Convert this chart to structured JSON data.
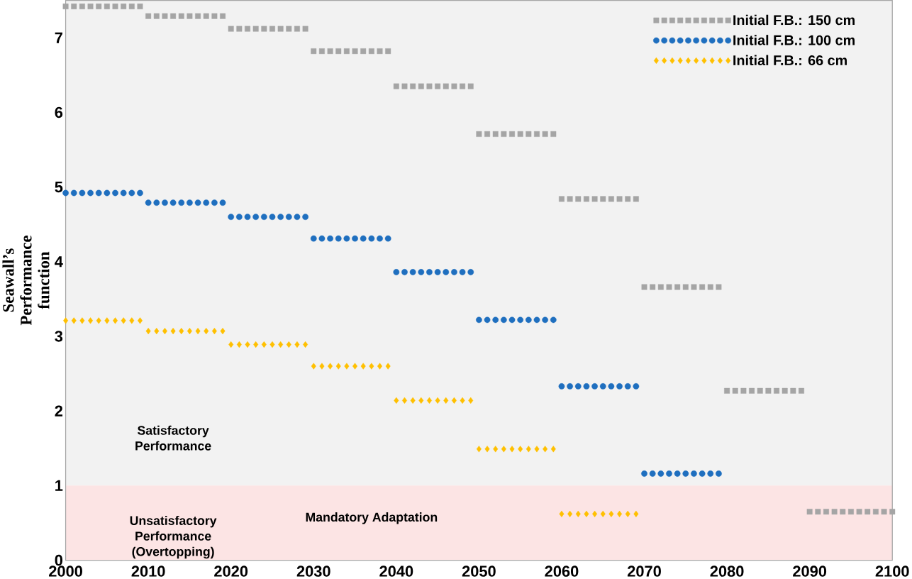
{
  "chart_data": {
    "type": "scatter",
    "ylabel": "Seawall’s Performance function",
    "x": [
      2000,
      2001,
      2002,
      2003,
      2004,
      2005,
      2006,
      2007,
      2008,
      2009,
      2010,
      2011,
      2012,
      2013,
      2014,
      2015,
      2016,
      2017,
      2018,
      2019,
      2020,
      2021,
      2022,
      2023,
      2024,
      2025,
      2026,
      2027,
      2028,
      2029,
      2030,
      2031,
      2032,
      2033,
      2034,
      2035,
      2036,
      2037,
      2038,
      2039,
      2040,
      2041,
      2042,
      2043,
      2044,
      2045,
      2046,
      2047,
      2048,
      2049,
      2050,
      2051,
      2052,
      2053,
      2054,
      2055,
      2056,
      2057,
      2058,
      2059,
      2060,
      2061,
      2062,
      2063,
      2064,
      2065,
      2066,
      2067,
      2068,
      2069,
      2070,
      2071,
      2072,
      2073,
      2074,
      2075,
      2076,
      2077,
      2078,
      2079,
      2080,
      2081,
      2082,
      2083,
      2084,
      2085,
      2086,
      2087,
      2088,
      2089,
      2090,
      2091,
      2092,
      2093,
      2094,
      2095,
      2096,
      2097,
      2098,
      2099,
      2100
    ],
    "series": [
      {
        "name": "Initial F.B.: 150 cm",
        "color": "#a5a5a5",
        "marker": "square",
        "values": [
          7.42,
          7.42,
          7.42,
          7.42,
          7.42,
          7.42,
          7.42,
          7.42,
          7.42,
          7.42,
          7.29,
          7.29,
          7.29,
          7.29,
          7.29,
          7.29,
          7.29,
          7.29,
          7.29,
          7.29,
          7.12,
          7.12,
          7.12,
          7.12,
          7.12,
          7.12,
          7.12,
          7.12,
          7.12,
          7.12,
          6.82,
          6.82,
          6.82,
          6.82,
          6.82,
          6.82,
          6.82,
          6.82,
          6.82,
          6.82,
          6.35,
          6.35,
          6.35,
          6.35,
          6.35,
          6.35,
          6.35,
          6.35,
          6.35,
          6.35,
          5.71,
          5.71,
          5.71,
          5.71,
          5.71,
          5.71,
          5.71,
          5.71,
          5.71,
          5.71,
          4.84,
          4.84,
          4.84,
          4.84,
          4.84,
          4.84,
          4.84,
          4.84,
          4.84,
          4.84,
          3.66,
          3.66,
          3.66,
          3.66,
          3.66,
          3.66,
          3.66,
          3.66,
          3.66,
          3.66,
          2.27,
          2.27,
          2.27,
          2.27,
          2.27,
          2.27,
          2.27,
          2.27,
          2.27,
          2.27,
          0.65,
          0.65,
          0.65,
          0.65,
          0.65,
          0.65,
          0.65,
          0.65,
          0.65,
          0.65,
          0.65
        ]
      },
      {
        "name": "Initial F.B.: 100 cm",
        "color": "#1f6fbf",
        "marker": "circle",
        "values": [
          4.92,
          4.92,
          4.92,
          4.92,
          4.92,
          4.92,
          4.92,
          4.92,
          4.92,
          4.92,
          4.79,
          4.79,
          4.79,
          4.79,
          4.79,
          4.79,
          4.79,
          4.79,
          4.79,
          4.79,
          4.6,
          4.6,
          4.6,
          4.6,
          4.6,
          4.6,
          4.6,
          4.6,
          4.6,
          4.6,
          4.31,
          4.31,
          4.31,
          4.31,
          4.31,
          4.31,
          4.31,
          4.31,
          4.31,
          4.31,
          3.86,
          3.86,
          3.86,
          3.86,
          3.86,
          3.86,
          3.86,
          3.86,
          3.86,
          3.86,
          3.22,
          3.22,
          3.22,
          3.22,
          3.22,
          3.22,
          3.22,
          3.22,
          3.22,
          3.22,
          2.33,
          2.33,
          2.33,
          2.33,
          2.33,
          2.33,
          2.33,
          2.33,
          2.33,
          2.33,
          1.16,
          1.16,
          1.16,
          1.16,
          1.16,
          1.16,
          1.16,
          1.16,
          1.16,
          1.16,
          null,
          null,
          null,
          null,
          null,
          null,
          null,
          null,
          null,
          null,
          null,
          null,
          null,
          null,
          null,
          null,
          null,
          null,
          null,
          null,
          null
        ]
      },
      {
        "name": "Initial F.B.: 66 cm",
        "color": "#ffc000",
        "marker": "diamond",
        "values": [
          3.21,
          3.21,
          3.21,
          3.21,
          3.21,
          3.21,
          3.21,
          3.21,
          3.21,
          3.21,
          3.07,
          3.07,
          3.07,
          3.07,
          3.07,
          3.07,
          3.07,
          3.07,
          3.07,
          3.07,
          2.89,
          2.89,
          2.89,
          2.89,
          2.89,
          2.89,
          2.89,
          2.89,
          2.89,
          2.89,
          2.6,
          2.6,
          2.6,
          2.6,
          2.6,
          2.6,
          2.6,
          2.6,
          2.6,
          2.6,
          2.14,
          2.14,
          2.14,
          2.14,
          2.14,
          2.14,
          2.14,
          2.14,
          2.14,
          2.14,
          1.49,
          1.49,
          1.49,
          1.49,
          1.49,
          1.49,
          1.49,
          1.49,
          1.49,
          1.49,
          0.62,
          0.62,
          0.62,
          0.62,
          0.62,
          0.62,
          0.62,
          0.62,
          0.62,
          0.62,
          null,
          null,
          null,
          null,
          null,
          null,
          null,
          null,
          null,
          null,
          null,
          null,
          null,
          null,
          null,
          null,
          null,
          null,
          null,
          null,
          null,
          null,
          null,
          null,
          null,
          null,
          null,
          null,
          null,
          null,
          null
        ]
      }
    ],
    "xlim": [
      2000,
      2100
    ],
    "ylim": [
      0,
      7.5
    ],
    "xticks": [
      2000,
      2010,
      2020,
      2030,
      2040,
      2050,
      2060,
      2070,
      2080,
      2090,
      2100
    ],
    "yticks": [
      0,
      1,
      2,
      3,
      4,
      5,
      6,
      7
    ],
    "bands": [
      {
        "axis": "y",
        "from": 1,
        "to": 7.5,
        "label": "Satisfactory Performance",
        "color": "#f2f2f2"
      },
      {
        "axis": "y",
        "from": 0,
        "to": 1,
        "label": "Unsatisfactory Performance (Overtopping)",
        "color": "#fce4e4"
      }
    ],
    "annotations": [
      "Mandatory Adaptation"
    ],
    "legend": "top right"
  }
}
